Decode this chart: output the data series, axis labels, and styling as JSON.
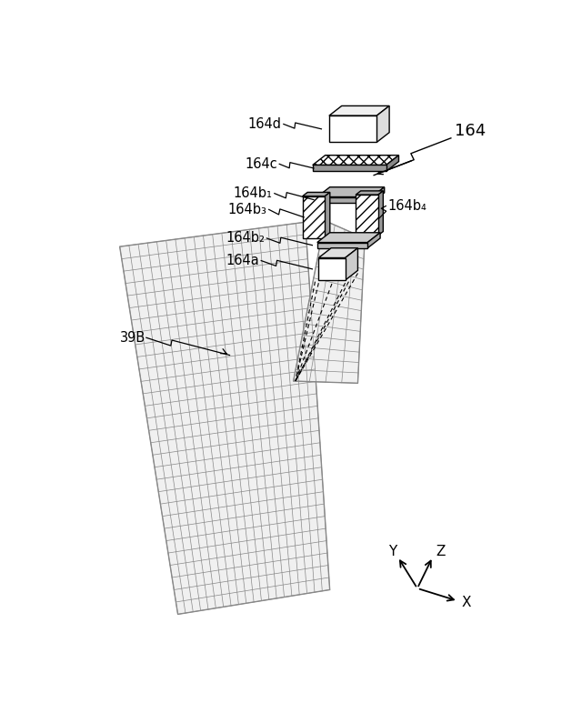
{
  "bg_color": "#ffffff",
  "fig_width": 6.4,
  "fig_height": 7.84,
  "dpi": 100,
  "label_164d": "164d",
  "label_164c": "164c",
  "label_164b1": "164b₁",
  "label_164b2": "164b₂",
  "label_164b3": "164b₃",
  "label_164b4": "164b₄",
  "label_164a": "164a",
  "label_164": "164",
  "label_39B": "39B",
  "grid_color": "#888888",
  "face_color": "#f5f5f5",
  "comp_gray_light": "#cccccc",
  "comp_gray_mid": "#aaaaaa",
  "comp_gray_dark": "#888888"
}
